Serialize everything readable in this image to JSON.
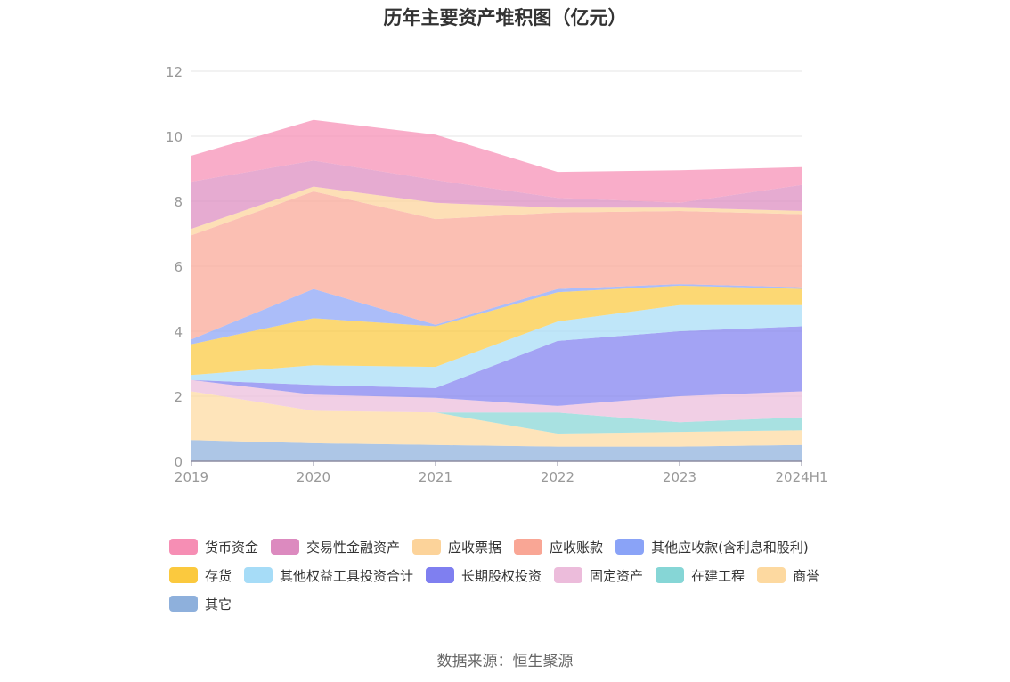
{
  "chart_data": {
    "type": "area",
    "stacked": true,
    "title": "历年主要资产堆积图（亿元）",
    "categories": [
      "2019",
      "2020",
      "2021",
      "2022",
      "2023",
      "2024H1"
    ],
    "ylim": [
      0,
      12
    ],
    "yticks": [
      0,
      2,
      4,
      6,
      8,
      10,
      12
    ],
    "grid": true,
    "legend_position": "bottom",
    "series": [
      {
        "name": "其它",
        "color": "#8eb0dc",
        "values": [
          0.65,
          0.55,
          0.5,
          0.45,
          0.45,
          0.5
        ]
      },
      {
        "name": "商誉",
        "color": "#fdd9a0",
        "values": [
          1.5,
          1.0,
          1.0,
          0.4,
          0.45,
          0.45
        ]
      },
      {
        "name": "在建工程",
        "color": "#86d6d6",
        "values": [
          0.0,
          0.0,
          0.0,
          0.65,
          0.3,
          0.4
        ]
      },
      {
        "name": "固定资产",
        "color": "#ecbcdb",
        "values": [
          0.35,
          0.5,
          0.45,
          0.2,
          0.8,
          0.8
        ]
      },
      {
        "name": "长期股权投资",
        "color": "#7f7ff0",
        "values": [
          0.0,
          0.3,
          0.3,
          2.0,
          2.0,
          2.0
        ]
      },
      {
        "name": "其他权益工具投资合计",
        "color": "#a6dcf7",
        "values": [
          0.15,
          0.6,
          0.65,
          0.6,
          0.8,
          0.65
        ]
      },
      {
        "name": "存货",
        "color": "#fbc93e",
        "values": [
          0.95,
          1.45,
          1.25,
          0.9,
          0.6,
          0.5
        ]
      },
      {
        "name": "其他应收款(含利息和股利)",
        "color": "#8aa3f7",
        "values": [
          0.15,
          0.9,
          0.05,
          0.1,
          0.05,
          0.05
        ]
      },
      {
        "name": "应收账款",
        "color": "#f9a695",
        "values": [
          3.2,
          3.0,
          3.25,
          2.35,
          2.25,
          2.25
        ]
      },
      {
        "name": "应收票据",
        "color": "#fcd39a",
        "values": [
          0.2,
          0.15,
          0.5,
          0.15,
          0.1,
          0.1
        ]
      },
      {
        "name": "交易性金融资产",
        "color": "#dc8abf",
        "values": [
          1.45,
          0.8,
          0.7,
          0.3,
          0.15,
          0.8
        ]
      },
      {
        "name": "货币资金",
        "color": "#f68eb4",
        "values": [
          0.8,
          1.25,
          1.4,
          0.8,
          1.0,
          0.55
        ]
      }
    ]
  },
  "legend": {
    "rows": [
      [
        "货币资金",
        "交易性金融资产",
        "应收票据",
        "应收账款",
        "其他应收款(含利息和股利)"
      ],
      [
        "存货",
        "其他权益工具投资合计",
        "长期股权投资",
        "固定资产",
        "在建工程",
        "商誉"
      ],
      [
        "其它"
      ]
    ]
  },
  "footer": {
    "source": "数据来源：恒生聚源"
  }
}
